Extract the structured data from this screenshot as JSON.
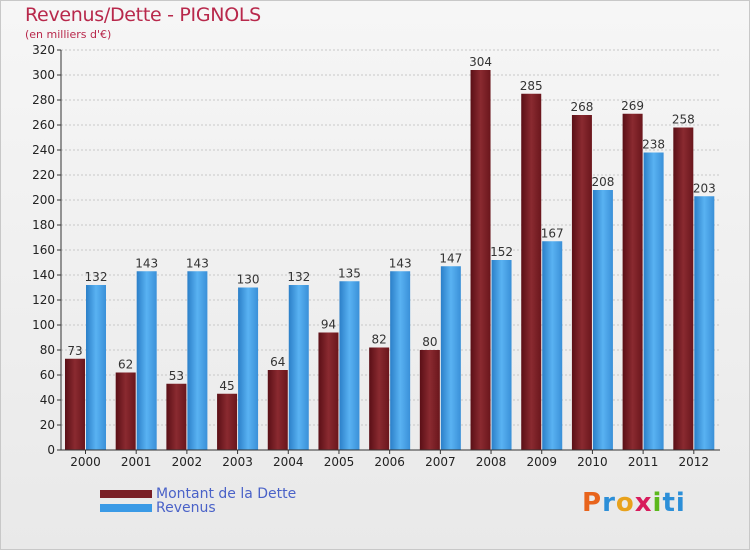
{
  "header": {
    "title": "Revenus/Dette - PIGNOLS",
    "subtitle": "(en milliers d'€)"
  },
  "logo": {
    "text": "Proxiti",
    "letters": [
      "P",
      "r",
      "o",
      "x",
      "i",
      "ti"
    ]
  },
  "colors": {
    "debt": "#7a1f26",
    "revenue": "#3a9ae6",
    "axis": "#333333",
    "grid": "#c8c8c8",
    "legend_text": "#4a62c8"
  },
  "chart_data": {
    "type": "bar",
    "title": "Revenus/Dette - PIGNOLS",
    "subtitle": "(en milliers d'€)",
    "categories": [
      "2000",
      "2001",
      "2002",
      "2003",
      "2004",
      "2005",
      "2006",
      "2007",
      "2008",
      "2009",
      "2010",
      "2011",
      "2012"
    ],
    "series": [
      {
        "name": "Montant de la Dette",
        "values": [
          73,
          62,
          53,
          45,
          64,
          94,
          82,
          80,
          304,
          285,
          268,
          269,
          258
        ]
      },
      {
        "name": "Revenus",
        "values": [
          132,
          143,
          143,
          130,
          132,
          135,
          143,
          147,
          152,
          167,
          208,
          238,
          203
        ]
      }
    ],
    "ylim": [
      0,
      320
    ],
    "yticks": [
      0,
      20,
      40,
      60,
      80,
      100,
      120,
      140,
      160,
      180,
      200,
      220,
      240,
      260,
      280,
      300,
      320
    ],
    "grid": true,
    "legend": "bottom-left"
  }
}
